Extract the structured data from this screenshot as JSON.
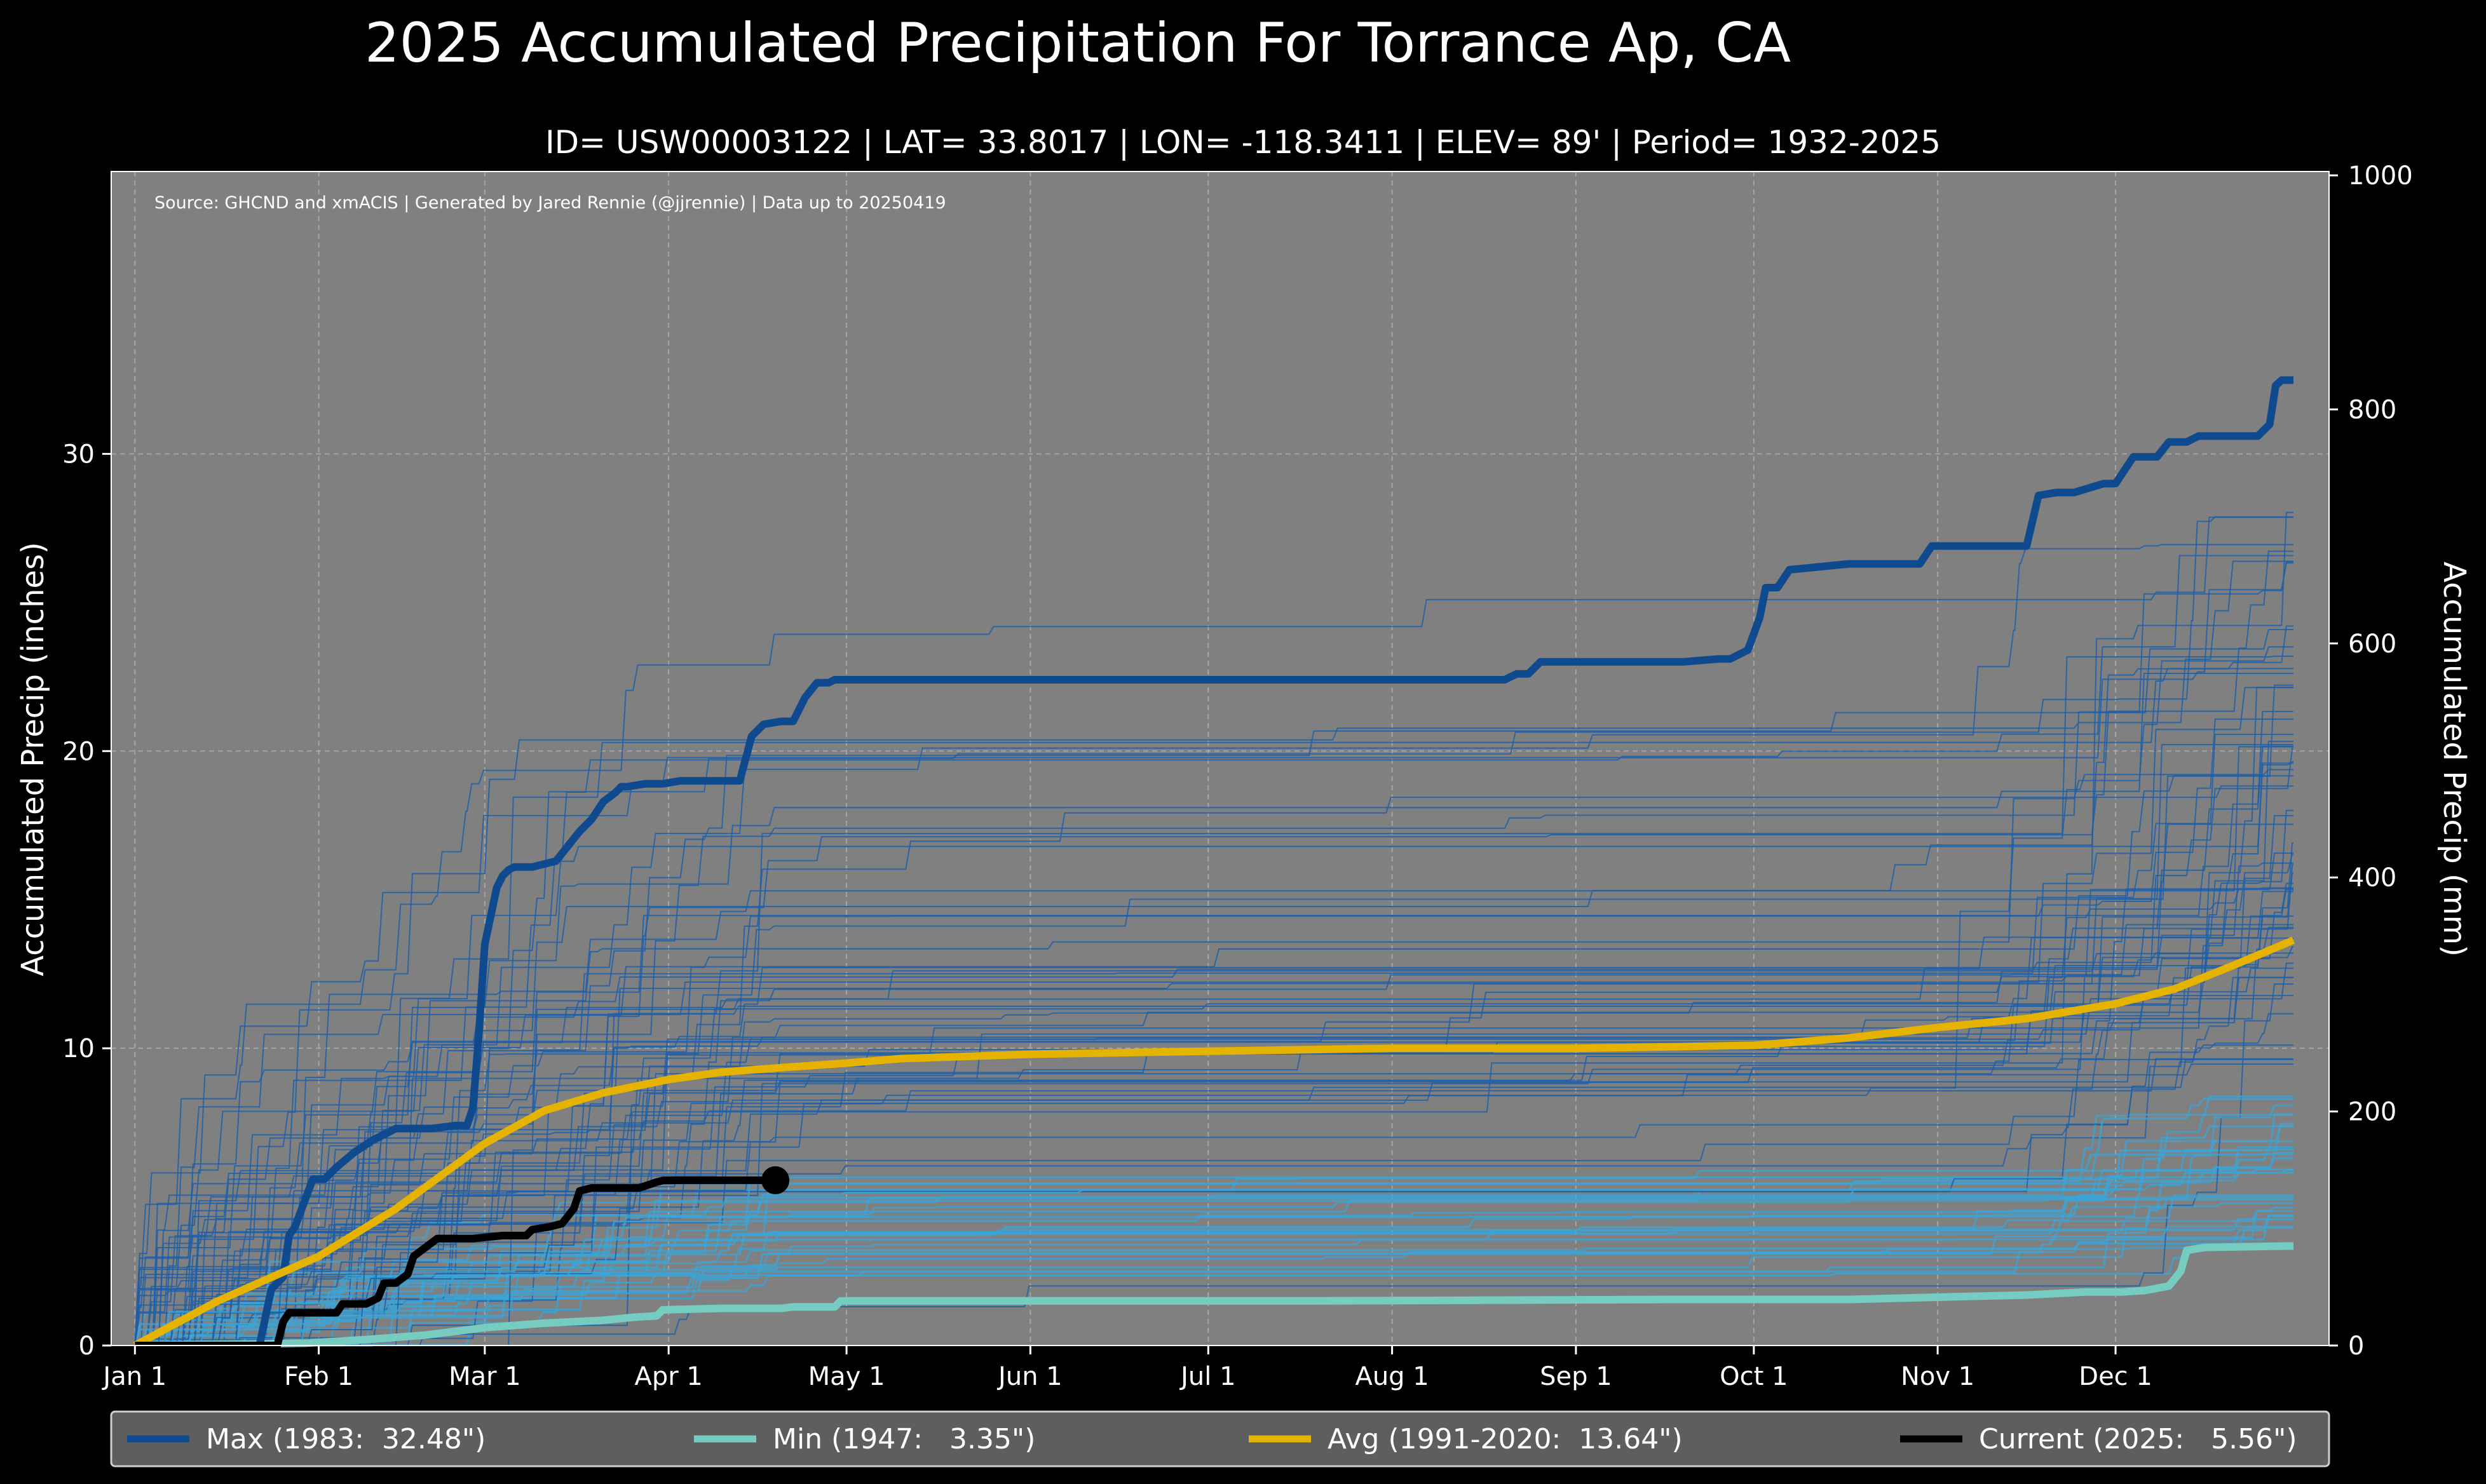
{
  "chart_data": {
    "type": "line",
    "title": "2025 Accumulated Precipitation For Torrance Ap, CA",
    "subtitle": "ID= USW00003122 | LAT= 33.8017 | LON= -118.3411 | ELEV= 89' | Period= 1932-2025",
    "source": "Source: GHCND and xmACIS | Generated by Jared Rennie (@jjrennie) | Data up to 20250419",
    "ylabel": "Accumulated Precip (inches)",
    "ylabel_right": "Accumulated Precip (mm)",
    "xlim": [
      1,
      366
    ],
    "ylim": [
      0,
      39.5
    ],
    "ylim_right_mm": [
      0,
      1003.3
    ],
    "grid": true,
    "legend_position": "bottom",
    "x_ticks": [
      {
        "label": "Jan 1",
        "day": 1
      },
      {
        "label": "Feb 1",
        "day": 32
      },
      {
        "label": "Mar 1",
        "day": 60
      },
      {
        "label": "Apr 1",
        "day": 91
      },
      {
        "label": "May 1",
        "day": 121
      },
      {
        "label": "Jun 1",
        "day": 152
      },
      {
        "label": "Jul 1",
        "day": 182
      },
      {
        "label": "Aug 1",
        "day": 213
      },
      {
        "label": "Sep 1",
        "day": 244
      },
      {
        "label": "Oct 1",
        "day": 274
      },
      {
        "label": "Nov 1",
        "day": 305
      },
      {
        "label": "Dec 1",
        "day": 335
      }
    ],
    "y_ticks": [
      0,
      10,
      20,
      30
    ],
    "y_ticks_right_mm": [
      0,
      200,
      400,
      600,
      800,
      1000
    ],
    "series": [
      {
        "name": "Max (1983:  32.48\")",
        "color": "#0f4a8f",
        "x": [
          1,
          22,
          24,
          26,
          27,
          28,
          31,
          33,
          35,
          38,
          41,
          45,
          51,
          55,
          57,
          58,
          59,
          60,
          62,
          63,
          64,
          65,
          66,
          68,
          72,
          74,
          76,
          78,
          80,
          82,
          83,
          84,
          87,
          90,
          93,
          98,
          101,
          103,
          105,
          107,
          110,
          111,
          112,
          114,
          116,
          118,
          119,
          121,
          125,
          130,
          150,
          180,
          220,
          232,
          234,
          236,
          238,
          240,
          250,
          262,
          268,
          270,
          273,
          275,
          276,
          278,
          280,
          290,
          300,
          302,
          304,
          312,
          315,
          320,
          322,
          325,
          328,
          333,
          335,
          338,
          340,
          342,
          344,
          347,
          349,
          355,
          359,
          361,
          362,
          363,
          365
        ],
        "y": [
          0,
          0,
          1.9,
          2.3,
          3.7,
          4.0,
          5.6,
          5.6,
          6.0,
          6.5,
          6.9,
          7.3,
          7.3,
          7.4,
          7.4,
          8.0,
          10.5,
          13.5,
          15.4,
          15.8,
          16.0,
          16.1,
          16.1,
          16.1,
          16.3,
          16.8,
          17.3,
          17.7,
          18.3,
          18.6,
          18.8,
          18.8,
          18.9,
          18.9,
          19.0,
          19.0,
          19.0,
          19.0,
          20.5,
          20.9,
          21.0,
          21.0,
          21.0,
          21.8,
          22.3,
          22.3,
          22.4,
          22.4,
          22.4,
          22.4,
          22.4,
          22.4,
          22.4,
          22.4,
          22.6,
          22.6,
          23.0,
          23.0,
          23.0,
          23.0,
          23.1,
          23.1,
          23.4,
          24.5,
          25.5,
          25.5,
          26.1,
          26.3,
          26.3,
          26.3,
          26.9,
          26.9,
          26.9,
          26.9,
          28.6,
          28.7,
          28.7,
          29.0,
          29.0,
          29.9,
          29.9,
          29.9,
          30.4,
          30.4,
          30.6,
          30.6,
          30.6,
          31.0,
          32.3,
          32.48,
          32.48
        ]
      },
      {
        "name": "Min (1947:   3.35\")",
        "color": "#76ccc1",
        "x": [
          1,
          30,
          40,
          50,
          60,
          70,
          80,
          85,
          89,
          90,
          100,
          110,
          112,
          119,
          120,
          150,
          200,
          260,
          290,
          300,
          310,
          320,
          325,
          330,
          336,
          340,
          344,
          346,
          347,
          350,
          365
        ],
        "y": [
          0,
          0.08,
          0.2,
          0.35,
          0.6,
          0.75,
          0.85,
          0.95,
          1.0,
          1.2,
          1.25,
          1.25,
          1.3,
          1.3,
          1.5,
          1.5,
          1.5,
          1.55,
          1.55,
          1.6,
          1.65,
          1.7,
          1.75,
          1.8,
          1.8,
          1.85,
          2.0,
          2.5,
          3.2,
          3.3,
          3.35
        ]
      },
      {
        "name": "Avg (1991-2020:  13.64\")",
        "color": "#e6b400",
        "x": [
          1,
          15,
          32,
          45,
          60,
          70,
          80,
          91,
          100,
          110,
          121,
          130,
          152,
          182,
          213,
          244,
          274,
          290,
          305,
          320,
          335,
          345,
          355,
          365
        ],
        "y": [
          0,
          1.5,
          3.0,
          4.6,
          6.8,
          7.9,
          8.5,
          8.95,
          9.2,
          9.35,
          9.5,
          9.65,
          9.8,
          9.9,
          10.0,
          10.0,
          10.1,
          10.35,
          10.7,
          11.0,
          11.5,
          12.0,
          12.8,
          13.64
        ]
      },
      {
        "name": "Current (2025:   5.56\")",
        "color": "#000000",
        "x": [
          1,
          25,
          26,
          27,
          33,
          35,
          36,
          40,
          42,
          43,
          45,
          47,
          48,
          50,
          52,
          53,
          55,
          58,
          63,
          67,
          68,
          71,
          73,
          75,
          76,
          78,
          80,
          86,
          89,
          90,
          93,
          100,
          103,
          109
        ],
        "y": [
          0,
          0,
          0.8,
          1.1,
          1.1,
          1.1,
          1.4,
          1.4,
          1.6,
          2.1,
          2.1,
          2.4,
          3.0,
          3.3,
          3.6,
          3.6,
          3.6,
          3.6,
          3.7,
          3.7,
          3.9,
          4.0,
          4.1,
          4.6,
          5.2,
          5.3,
          5.3,
          5.3,
          5.5,
          5.55,
          5.56,
          5.56,
          5.56,
          5.56
        ],
        "end_marker": true
      }
    ],
    "legend": [
      {
        "label": "Max (1983:  32.48\")",
        "color": "#0f4a8f"
      },
      {
        "label": "Min (1947:   3.35\")",
        "color": "#76ccc1"
      },
      {
        "label": "Avg (1991-2020:  13.64\")",
        "color": "#e6b400"
      },
      {
        "label": "Current (2025:   5.56\")",
        "color": "#000000"
      }
    ],
    "background_years_note": "Individual year traces 1932-2024 (thin blue lines)",
    "colors": {
      "plot_bg": "#808080",
      "figure_bg": "#000000",
      "grid": "#bdbdbd",
      "legend_bg": "#5e5e5e",
      "history_line": "#1f5fa8",
      "history_line_light": "#3aa6d8"
    }
  }
}
